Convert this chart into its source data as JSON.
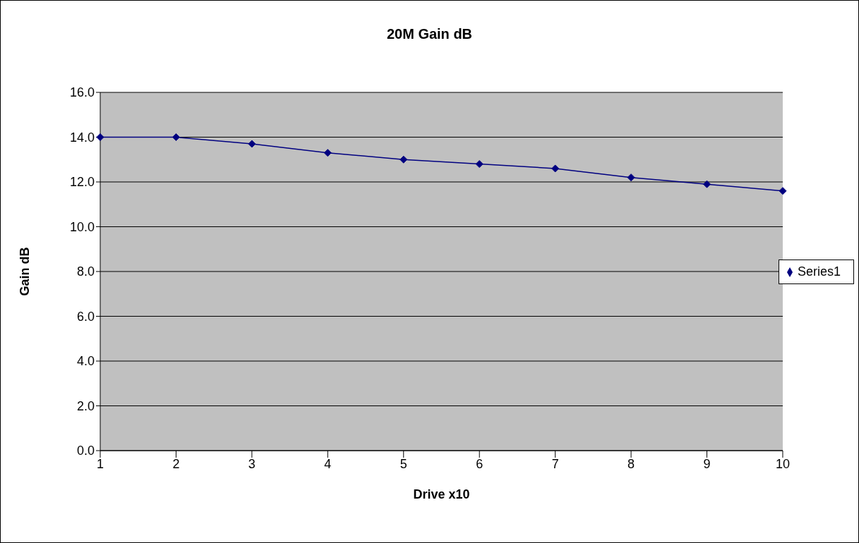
{
  "chart_data": {
    "type": "line",
    "title": "20M Gain dB",
    "xlabel": "Drive x10",
    "ylabel": "Gain dB",
    "categories": [
      "1",
      "2",
      "3",
      "4",
      "5",
      "6",
      "7",
      "8",
      "9",
      "10"
    ],
    "series": [
      {
        "name": "Series1",
        "color": "#000080",
        "values": [
          14.0,
          14.0,
          13.7,
          13.3,
          13.0,
          12.8,
          12.6,
          12.2,
          11.9,
          11.6
        ]
      }
    ],
    "ylim": [
      0,
      16
    ],
    "yticks": [
      {
        "value": 0,
        "label": "0.0"
      },
      {
        "value": 2,
        "label": "2.0"
      },
      {
        "value": 4,
        "label": "4.0"
      },
      {
        "value": 6,
        "label": "6.0"
      },
      {
        "value": 8,
        "label": "8.0"
      },
      {
        "value": 10,
        "label": "10.0"
      },
      {
        "value": 12,
        "label": "12.0"
      },
      {
        "value": 14,
        "label": "14.0"
      },
      {
        "value": 16,
        "label": "16.0"
      }
    ],
    "grid": "y",
    "legend": "right",
    "marker": "diamond",
    "line_style": "solid"
  }
}
